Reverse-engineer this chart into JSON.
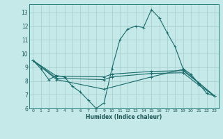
{
  "xlabel": "Humidex (Indice chaleur)",
  "bg_color": "#c5e8e8",
  "grid_color": "#aacfcf",
  "line_color": "#1a6b6b",
  "xlim": [
    -0.5,
    23.5
  ],
  "ylim": [
    6.0,
    13.6
  ],
  "yticks": [
    6,
    7,
    8,
    9,
    10,
    11,
    12,
    13
  ],
  "xticks": [
    0,
    1,
    2,
    3,
    4,
    5,
    6,
    7,
    8,
    9,
    10,
    11,
    12,
    13,
    14,
    15,
    16,
    17,
    18,
    19,
    20,
    21,
    22,
    23
  ],
  "lines": [
    {
      "x": [
        0,
        1,
        2,
        3,
        4,
        5,
        6,
        7,
        8,
        9,
        10,
        11,
        12,
        13,
        14,
        15,
        16,
        17,
        18,
        19,
        20,
        21,
        22,
        23
      ],
      "y": [
        9.5,
        8.9,
        8.1,
        8.4,
        8.3,
        7.6,
        7.2,
        6.6,
        6.0,
        6.4,
        8.9,
        11.0,
        11.8,
        12.0,
        11.9,
        13.2,
        12.6,
        11.5,
        10.5,
        8.9,
        8.5,
        7.8,
        7.1,
        6.9
      ]
    },
    {
      "x": [
        0,
        3,
        9,
        10,
        15,
        19,
        21,
        23
      ],
      "y": [
        9.5,
        8.35,
        8.3,
        8.5,
        8.7,
        8.75,
        7.85,
        6.9
      ]
    },
    {
      "x": [
        0,
        3,
        9,
        10,
        15,
        19,
        21,
        23
      ],
      "y": [
        9.5,
        8.2,
        8.1,
        8.3,
        8.55,
        8.6,
        7.7,
        6.9
      ]
    },
    {
      "x": [
        0,
        3,
        9,
        15,
        19,
        23
      ],
      "y": [
        9.5,
        8.1,
        7.4,
        8.3,
        8.85,
        6.9
      ]
    }
  ]
}
